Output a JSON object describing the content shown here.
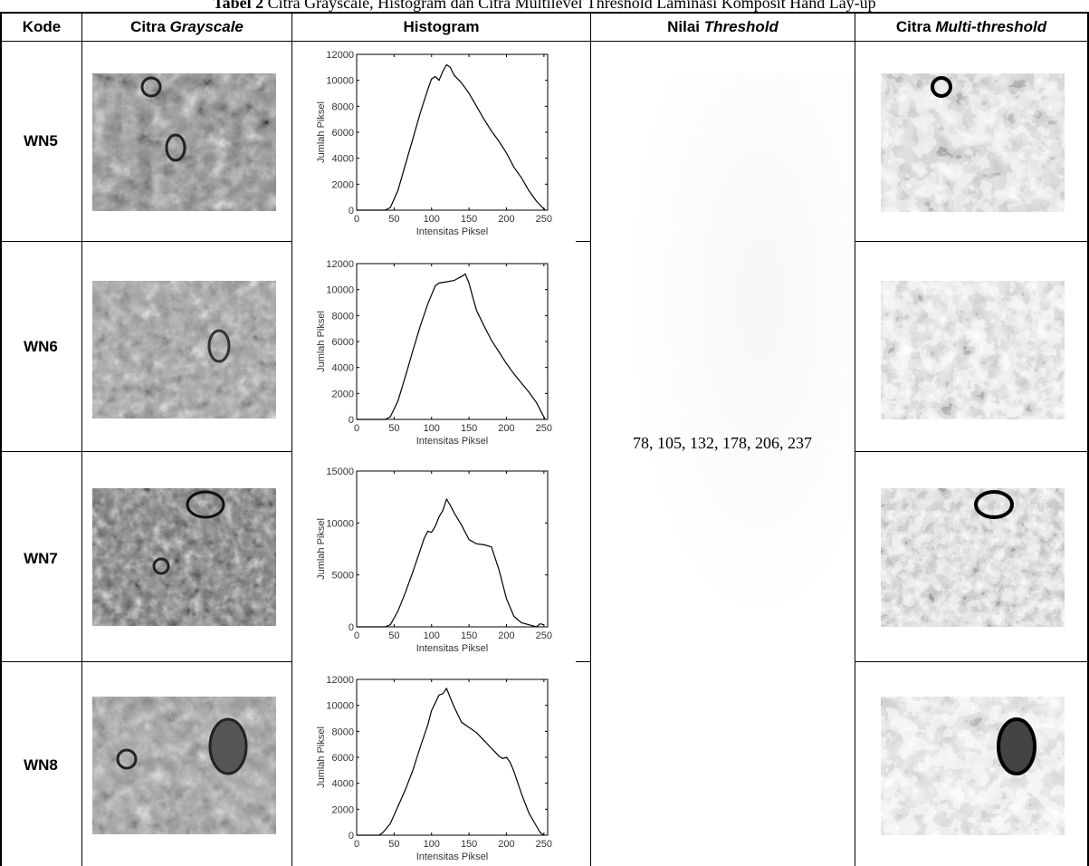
{
  "caption": {
    "label": "Tabel 2",
    "text": "Citra Grayscale, Histogram dan Citra Multilevel Threshold Laminasi Komposit Hand Lay-up"
  },
  "columns": {
    "kode": "Kode",
    "grayscale_prefix": "Citra ",
    "grayscale_em": "Grayscale",
    "histogram": "Histogram",
    "threshold_prefix": "Nilai ",
    "threshold_em": "Threshold",
    "multi_prefix": "Citra ",
    "multi_em": "Multi-threshold"
  },
  "threshold_values": "78, 105, 132, 178, 206, 237",
  "rows": [
    {
      "kode": "WN5"
    },
    {
      "kode": "WN6"
    },
    {
      "kode": "WN7"
    },
    {
      "kode": "WN8"
    }
  ],
  "chart_data": [
    {
      "type": "line",
      "xlabel": "Intensitas Piksel",
      "ylabel": "Jumlah Piksel",
      "xlim": [
        0,
        255
      ],
      "ylim": [
        0,
        12000
      ],
      "xticks": [
        0,
        50,
        100,
        150,
        200,
        250
      ],
      "yticks": [
        0,
        2000,
        4000,
        6000,
        8000,
        10000,
        12000
      ],
      "x": [
        0,
        38,
        45,
        55,
        65,
        75,
        85,
        95,
        100,
        105,
        110,
        115,
        120,
        125,
        130,
        135,
        140,
        145,
        150,
        160,
        170,
        180,
        190,
        200,
        210,
        220,
        230,
        240,
        248,
        252
      ],
      "y": [
        0,
        0,
        200,
        1500,
        3500,
        5500,
        7500,
        9300,
        10100,
        10300,
        10000,
        10700,
        11200,
        11000,
        10400,
        10100,
        9800,
        9400,
        9000,
        8000,
        7000,
        6100,
        5300,
        4400,
        3300,
        2500,
        1500,
        700,
        200,
        0
      ]
    },
    {
      "type": "line",
      "xlabel": "Intensitas Piksel",
      "ylabel": "Jumlah Piksel",
      "xlim": [
        0,
        255
      ],
      "ylim": [
        0,
        12000
      ],
      "xticks": [
        0,
        50,
        100,
        150,
        200,
        250
      ],
      "yticks": [
        0,
        2000,
        4000,
        6000,
        8000,
        10000,
        12000
      ],
      "x": [
        0,
        38,
        45,
        55,
        65,
        75,
        85,
        95,
        105,
        110,
        120,
        130,
        140,
        145,
        150,
        155,
        160,
        170,
        180,
        190,
        200,
        210,
        220,
        230,
        240,
        248,
        252
      ],
      "y": [
        0,
        0,
        200,
        1400,
        3300,
        5300,
        7200,
        8900,
        10300,
        10500,
        10600,
        10700,
        11000,
        11200,
        10500,
        9400,
        8400,
        7200,
        6100,
        5200,
        4300,
        3500,
        2800,
        2100,
        1300,
        400,
        0
      ]
    },
    {
      "type": "line",
      "xlabel": "Intensitas Piksel",
      "ylabel": "Jumlah Piksel",
      "xlim": [
        0,
        255
      ],
      "ylim": [
        0,
        15000
      ],
      "xticks": [
        0,
        50,
        100,
        150,
        200,
        250
      ],
      "yticks": [
        0,
        5000,
        10000,
        15000
      ],
      "x": [
        0,
        38,
        45,
        55,
        65,
        75,
        85,
        90,
        95,
        100,
        105,
        110,
        115,
        120,
        125,
        130,
        140,
        150,
        160,
        170,
        180,
        190,
        200,
        210,
        220,
        230,
        240,
        245,
        250
      ],
      "y": [
        0,
        0,
        200,
        1500,
        3300,
        5300,
        7400,
        8500,
        9200,
        9100,
        9700,
        10600,
        11200,
        12300,
        11700,
        11000,
        9800,
        8400,
        8000,
        7900,
        7700,
        5500,
        2700,
        1000,
        400,
        200,
        0,
        300,
        200
      ]
    },
    {
      "type": "line",
      "xlabel": "Intensitas Piksel",
      "ylabel": "Jumlah Piksel",
      "xlim": [
        0,
        255
      ],
      "ylim": [
        0,
        12000
      ],
      "xticks": [
        0,
        50,
        100,
        150,
        200,
        250
      ],
      "yticks": [
        0,
        2000,
        4000,
        6000,
        8000,
        10000,
        12000
      ],
      "x": [
        0,
        30,
        35,
        45,
        55,
        65,
        75,
        85,
        95,
        100,
        105,
        110,
        115,
        120,
        125,
        130,
        140,
        150,
        160,
        170,
        180,
        190,
        195,
        200,
        205,
        210,
        220,
        230,
        240,
        245,
        250
      ],
      "y": [
        0,
        0,
        200,
        900,
        2200,
        3500,
        5000,
        6800,
        8500,
        9600,
        10200,
        10800,
        10900,
        11300,
        10600,
        9900,
        8700,
        8300,
        7900,
        7300,
        6700,
        6100,
        5900,
        6000,
        5600,
        4900,
        3200,
        1700,
        700,
        200,
        0
      ]
    }
  ]
}
